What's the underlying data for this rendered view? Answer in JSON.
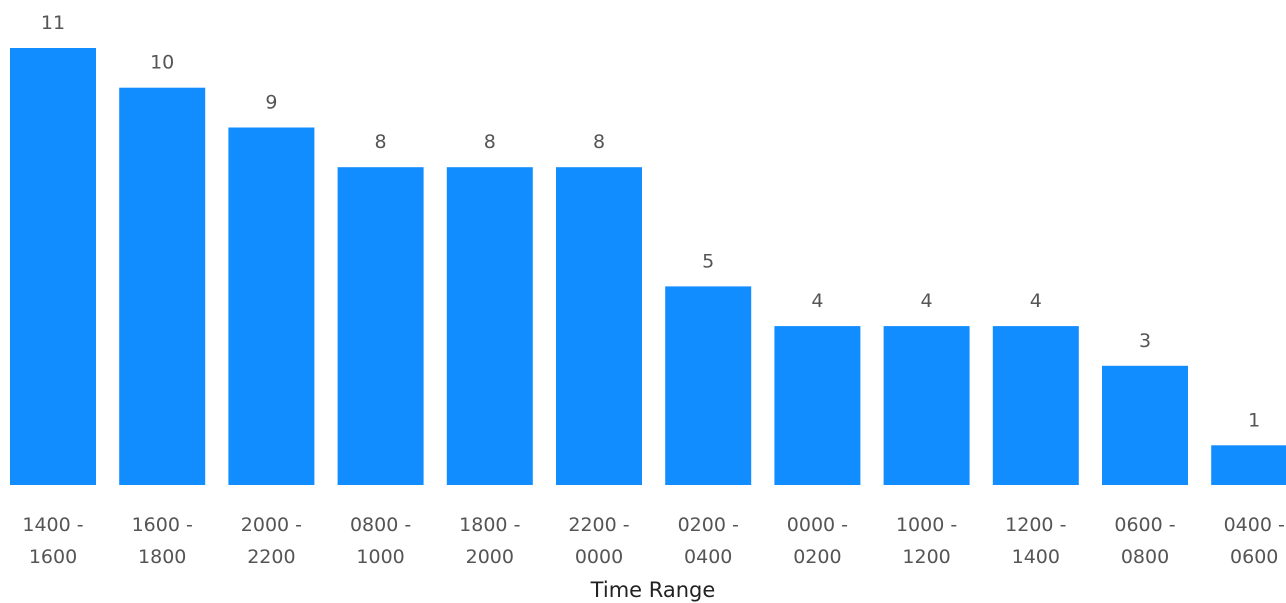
{
  "chart_data": {
    "type": "bar",
    "title": "",
    "xlabel": "Time Range",
    "ylabel": "",
    "ylim": [
      0,
      11
    ],
    "grid": false,
    "bar_color": "#118DFF",
    "categories": [
      [
        "1400 -",
        "1600"
      ],
      [
        "1600 -",
        "1800"
      ],
      [
        "2000 -",
        "2200"
      ],
      [
        "0800 -",
        "1000"
      ],
      [
        "1800 -",
        "2000"
      ],
      [
        "2200 -",
        "0000"
      ],
      [
        "0200 -",
        "0400"
      ],
      [
        "0000 -",
        "0200"
      ],
      [
        "1000 -",
        "1200"
      ],
      [
        "1200 -",
        "1400"
      ],
      [
        "0600 -",
        "0800"
      ],
      [
        "0400 -",
        "0600"
      ]
    ],
    "values": [
      11,
      10,
      9,
      8,
      8,
      8,
      5,
      4,
      4,
      4,
      3,
      1
    ],
    "data_labels": [
      "11",
      "10",
      "9",
      "8",
      "8",
      "8",
      "5",
      "4",
      "4",
      "4",
      "3",
      "1"
    ]
  }
}
